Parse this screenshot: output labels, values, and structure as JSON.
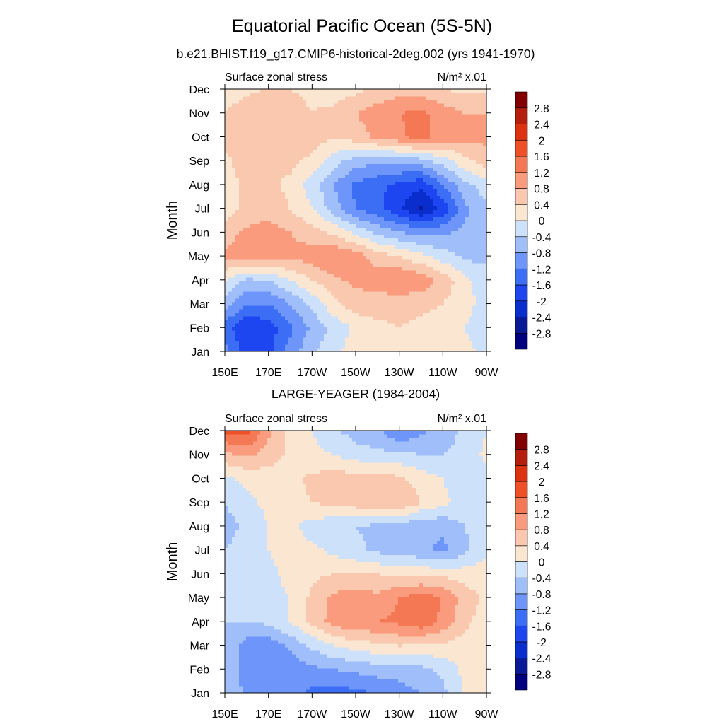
{
  "figure": {
    "title": "Equatorial Pacific Ocean (5S-5N)",
    "subtitle": "b.e21.BHIST.f19_g17.CMIP6-historical-2deg.002 (yrs 1941-1970)"
  },
  "colors": {
    "levels": [
      "#00007f",
      "#0a1a96",
      "#0a2dcd",
      "#1e46f0",
      "#3c6ef5",
      "#6e96fa",
      "#a0befa",
      "#cde1fa",
      "#fbe6d2",
      "#fac8af",
      "#fa9b7d",
      "#f57855",
      "#f05028",
      "#dc320f",
      "#b41e0a",
      "#820000"
    ]
  },
  "chart_data": [
    {
      "type": "heatmap",
      "panel_title": "",
      "left_label": "Surface zonal stress",
      "right_label": "N/m² x.01",
      "ylabel": "Month",
      "xlabel": "",
      "x_ticks": [
        "150E",
        "170E",
        "170W",
        "150W",
        "130W",
        "110W",
        "90W"
      ],
      "y_ticks": [
        "Jan",
        "Feb",
        "Mar",
        "Apr",
        "May",
        "Jun",
        "Jul",
        "Aug",
        "Sep",
        "Oct",
        "Nov",
        "Dec"
      ],
      "colorbar_labels": [
        "-2.8",
        "-2.4",
        "-2",
        "-1.6",
        "-1.2",
        "-0.8",
        "-0.4",
        "0",
        "0.4",
        "0.8",
        "1.2",
        "1.6",
        "2",
        "2.4",
        "2.8"
      ],
      "values": [
        [
          -1.0,
          -1.9,
          -1.8,
          -1.0,
          -0.5,
          -0.1,
          0.2,
          0.3,
          0.4,
          0.3,
          0.2,
          0.1,
          -0.1
        ],
        [
          -1.4,
          -2.0,
          -1.8,
          -1.3,
          -0.7,
          -0.3,
          0.1,
          0.3,
          0.4,
          0.3,
          0.2,
          0.0,
          -0.2
        ],
        [
          -0.6,
          -1.2,
          -1.2,
          -0.8,
          -0.3,
          0.3,
          0.6,
          0.6,
          0.5,
          0.5,
          0.4,
          0.1,
          -0.1
        ],
        [
          0.0,
          -0.5,
          -0.4,
          0.0,
          0.4,
          0.7,
          0.9,
          1.0,
          1.2,
          1.1,
          0.7,
          0.1,
          -0.2
        ],
        [
          0.9,
          1.0,
          0.9,
          0.9,
          1.0,
          1.2,
          1.0,
          0.6,
          0.4,
          0.1,
          -0.2,
          -0.5,
          -0.5
        ],
        [
          0.6,
          0.9,
          1.0,
          0.8,
          0.6,
          0.3,
          -0.1,
          -0.5,
          -0.8,
          -0.9,
          -0.9,
          -0.7,
          -0.5
        ],
        [
          0.2,
          0.5,
          0.6,
          0.4,
          0.0,
          -0.6,
          -1.2,
          -1.5,
          -1.9,
          -2.5,
          -1.9,
          -0.9,
          -0.5
        ],
        [
          0.2,
          0.5,
          0.5,
          0.3,
          -0.2,
          -0.8,
          -1.3,
          -1.5,
          -1.7,
          -1.9,
          -1.2,
          -0.5,
          -0.2
        ],
        [
          0.3,
          0.6,
          0.6,
          0.5,
          0.3,
          -0.2,
          -0.6,
          -0.7,
          -0.7,
          -0.6,
          -0.2,
          0.3,
          0.6
        ],
        [
          0.5,
          0.8,
          0.8,
          0.7,
          0.6,
          0.4,
          0.6,
          0.9,
          1.1,
          1.4,
          1.0,
          0.9,
          0.9
        ],
        [
          0.4,
          0.7,
          0.8,
          0.6,
          0.4,
          0.5,
          0.8,
          1.0,
          1.2,
          1.3,
          1.0,
          0.8,
          0.8
        ],
        [
          0.1,
          0.3,
          0.4,
          0.4,
          0.3,
          0.2,
          0.3,
          0.5,
          0.6,
          0.6,
          0.4,
          0.3,
          0.3
        ]
      ]
    },
    {
      "type": "heatmap",
      "panel_title": "LARGE-YEAGER (1984-2004)",
      "left_label": "Surface zonal stress",
      "right_label": "N/m² x.01",
      "ylabel": "Month",
      "xlabel": "",
      "x_ticks": [
        "150E",
        "170E",
        "170W",
        "150W",
        "130W",
        "110W",
        "90W"
      ],
      "y_ticks": [
        "Jan",
        "Feb",
        "Mar",
        "Apr",
        "May",
        "Jun",
        "Jul",
        "Aug",
        "Sep",
        "Oct",
        "Nov",
        "Dec"
      ],
      "colorbar_labels": [
        "-2.8",
        "-2.4",
        "-2",
        "-1.6",
        "-1.2",
        "-0.8",
        "-0.4",
        "0",
        "0.4",
        "0.8",
        "1.2",
        "1.6",
        "2",
        "2.4",
        "2.8"
      ],
      "values": [
        [
          -0.5,
          -0.9,
          -0.8,
          -0.9,
          -1.3,
          -1.4,
          -1.3,
          -1.2,
          -1.0,
          -0.8,
          -0.5,
          0.1,
          0.2
        ],
        [
          -0.6,
          -0.9,
          -1.0,
          -1.1,
          -0.9,
          -0.8,
          -0.7,
          -0.6,
          -0.6,
          -0.5,
          -0.3,
          0.1,
          0.2
        ],
        [
          -0.4,
          -1.0,
          -1.1,
          -0.7,
          -0.3,
          0.0,
          0.2,
          0.3,
          0.4,
          0.3,
          0.3,
          0.2,
          0.2
        ],
        [
          -0.4,
          -0.4,
          -0.3,
          0.0,
          0.5,
          1.0,
          1.1,
          1.2,
          1.3,
          1.5,
          1.1,
          0.5,
          0.2
        ],
        [
          -0.3,
          -0.2,
          -0.1,
          0.0,
          0.5,
          0.9,
          1.0,
          0.9,
          1.2,
          1.4,
          1.2,
          0.6,
          0.3
        ],
        [
          -0.3,
          -0.2,
          -0.1,
          0.1,
          0.3,
          0.4,
          0.4,
          0.4,
          0.3,
          0.3,
          0.3,
          0.2,
          0.2
        ],
        [
          -0.4,
          -0.2,
          0.0,
          0.2,
          0.1,
          -0.1,
          -0.3,
          -0.5,
          -0.6,
          -0.7,
          -0.9,
          -0.5,
          -0.1
        ],
        [
          -0.6,
          -0.3,
          0.0,
          0.1,
          -0.2,
          -0.3,
          -0.4,
          -0.5,
          -0.6,
          -0.8,
          -0.7,
          -0.4,
          -0.2
        ],
        [
          -0.4,
          -0.1,
          0.1,
          0.2,
          0.4,
          0.5,
          0.6,
          0.7,
          0.8,
          0.4,
          0.1,
          -0.2,
          -0.3
        ],
        [
          -0.1,
          0.1,
          0.2,
          0.3,
          0.5,
          0.6,
          0.6,
          0.6,
          0.5,
          0.2,
          0.0,
          -0.2,
          -0.1
        ],
        [
          0.7,
          0.9,
          0.6,
          0.3,
          0.1,
          0.0,
          -0.2,
          -0.3,
          -0.3,
          -0.4,
          -0.4,
          -0.3,
          0.1
        ],
        [
          1.7,
          1.8,
          0.9,
          0.3,
          0.0,
          -0.3,
          -0.6,
          -0.7,
          -1.2,
          -0.9,
          -0.6,
          -0.3,
          0.0
        ]
      ]
    }
  ]
}
